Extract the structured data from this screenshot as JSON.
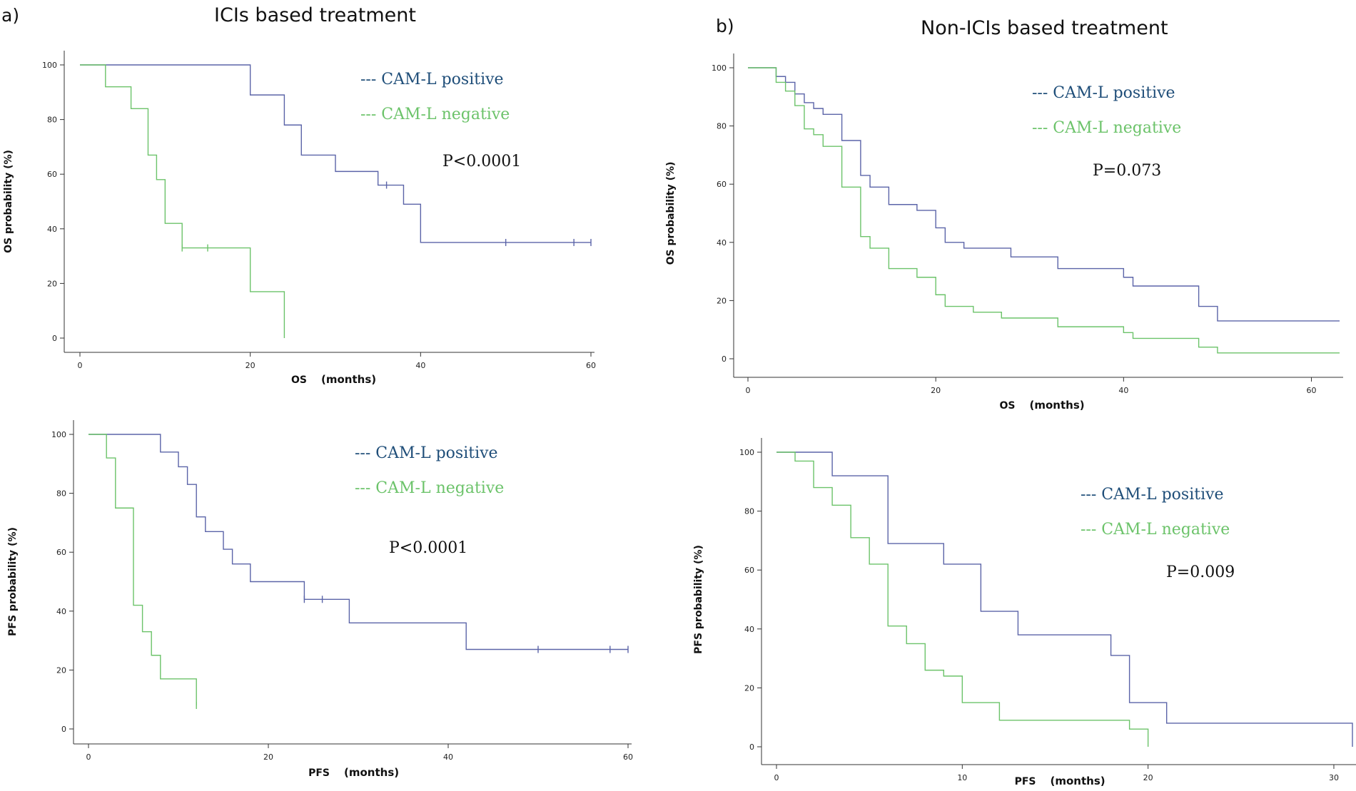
{
  "figure": {
    "panel_a": {
      "label": "a)",
      "title": "ICIs based treatment"
    },
    "panel_b": {
      "label": "b)",
      "title": "Non-ICIs based treatment"
    }
  },
  "colors": {
    "positive": "#5b64a8",
    "negative": "#6cc36a",
    "positive_text": "#1f4e79",
    "negative_text": "#6cc36a",
    "axis": "#333333"
  },
  "chart_data": [
    {
      "type": "line",
      "subtype": "kaplan-meier",
      "panel": "a-top",
      "xlabel": "OS",
      "xunit": "(months)",
      "ylabel": "OS probability (%)",
      "xlim": [
        0,
        60
      ],
      "ylim": [
        0,
        100
      ],
      "xticks": [
        0,
        20,
        40,
        60
      ],
      "yticks": [
        0,
        20,
        40,
        60,
        80,
        100
      ],
      "pvalue": "P<0.0001",
      "series": [
        {
          "name": "CAM-L positive",
          "legend": "--- CAM-L positive",
          "color_key": "positive",
          "times": [
            20,
            24,
            26,
            30,
            35,
            38,
            40
          ],
          "values": [
            89,
            78,
            67,
            61,
            56,
            49,
            35
          ],
          "end": 60,
          "censors": [
            [
              36,
              56
            ],
            [
              50,
              35
            ],
            [
              58,
              35
            ],
            [
              60,
              35
            ]
          ]
        },
        {
          "name": "CAM-L negative",
          "legend": "--- CAM-L  negative",
          "color_key": "negative",
          "times": [
            3,
            6,
            8,
            9,
            10,
            12,
            20,
            24
          ],
          "values": [
            92,
            84,
            67,
            58,
            42,
            33,
            17,
            0
          ],
          "end": 24,
          "censors": [
            [
              12,
              33
            ],
            [
              15,
              33
            ]
          ]
        }
      ]
    },
    {
      "type": "line",
      "subtype": "kaplan-meier",
      "panel": "a-bottom",
      "xlabel": "PFS",
      "xunit": "(months)",
      "ylabel": "PFS probability (%)",
      "xlim": [
        0,
        60
      ],
      "ylim": [
        0,
        100
      ],
      "xticks": [
        0,
        20,
        40,
        60
      ],
      "yticks": [
        0,
        20,
        40,
        60,
        80,
        100
      ],
      "pvalue": "P<0.0001",
      "series": [
        {
          "name": "CAM-L positive",
          "legend": "--- CAM-L positive",
          "color_key": "positive",
          "times": [
            8,
            10,
            11,
            12,
            13,
            15,
            16,
            18,
            24,
            29,
            42
          ],
          "values": [
            94,
            89,
            83,
            72,
            67,
            61,
            56,
            50,
            44,
            36,
            27
          ],
          "end": 60,
          "censors": [
            [
              24,
              44
            ],
            [
              26,
              44
            ],
            [
              50,
              27
            ],
            [
              58,
              27
            ],
            [
              60,
              27
            ]
          ]
        },
        {
          "name": "CAM-L negative",
          "legend": "--- CAM-L  negative",
          "color_key": "negative",
          "times": [
            2,
            3,
            5,
            6,
            7,
            8,
            12
          ],
          "values": [
            92,
            75,
            42,
            33,
            25,
            17,
            8
          ],
          "end": 12,
          "censors": [
            [
              12,
              8
            ]
          ]
        }
      ]
    },
    {
      "type": "line",
      "subtype": "kaplan-meier",
      "panel": "b-top",
      "xlabel": "OS",
      "xunit": "(months)",
      "ylabel": "OS probability (%)",
      "xlim": [
        0,
        63
      ],
      "ylim": [
        0,
        100
      ],
      "xticks": [
        0,
        20,
        40,
        60
      ],
      "yticks": [
        0,
        20,
        40,
        60,
        80,
        100
      ],
      "pvalue": "P=0.073",
      "series": [
        {
          "name": "CAM-L positive",
          "legend": "--- CAM-L positive",
          "color_key": "positive",
          "times": [
            3,
            4,
            5,
            6,
            7,
            8,
            10,
            12,
            13,
            15,
            18,
            20,
            21,
            23,
            28,
            33,
            40,
            41,
            48,
            50
          ],
          "values": [
            97,
            95,
            91,
            88,
            86,
            84,
            75,
            63,
            59,
            53,
            51,
            45,
            40,
            38,
            35,
            31,
            28,
            25,
            18,
            13
          ],
          "end": 63,
          "censors": []
        },
        {
          "name": "CAM-L negative",
          "legend": "--- CAM-L  negative",
          "color_key": "negative",
          "times": [
            3,
            4,
            5,
            6,
            7,
            8,
            10,
            12,
            13,
            15,
            18,
            20,
            21,
            24,
            27,
            33,
            40,
            41,
            48,
            50
          ],
          "values": [
            95,
            92,
            87,
            79,
            77,
            73,
            59,
            42,
            38,
            31,
            28,
            22,
            18,
            16,
            14,
            11,
            9,
            7,
            4,
            2
          ],
          "end": 63,
          "censors": []
        }
      ]
    },
    {
      "type": "line",
      "subtype": "kaplan-meier",
      "panel": "b-bottom",
      "xlabel": "PFS",
      "xunit": "(months)",
      "ylabel": "PFS probability (%)",
      "xlim": [
        0,
        31
      ],
      "ylim": [
        0,
        100
      ],
      "xticks": [
        0,
        10,
        20,
        30
      ],
      "yticks": [
        0,
        20,
        40,
        60,
        80,
        100
      ],
      "pvalue": "P=0.009",
      "series": [
        {
          "name": "CAM-L positive",
          "legend": "--- CAM-L positive",
          "color_key": "positive",
          "times": [
            3,
            6,
            9,
            11,
            13,
            18,
            19,
            21,
            31
          ],
          "values": [
            92,
            69,
            62,
            46,
            38,
            31,
            15,
            8,
            0
          ],
          "end": 31,
          "censors": []
        },
        {
          "name": "CAM-L negative",
          "legend": "--- CAM-L  negative",
          "color_key": "negative",
          "times": [
            1,
            2,
            3,
            4,
            5,
            6,
            7,
            8,
            9,
            10,
            12,
            19,
            20
          ],
          "values": [
            97,
            88,
            82,
            71,
            62,
            41,
            35,
            26,
            24,
            15,
            9,
            6,
            0
          ],
          "end": 20,
          "censors": []
        }
      ]
    }
  ]
}
